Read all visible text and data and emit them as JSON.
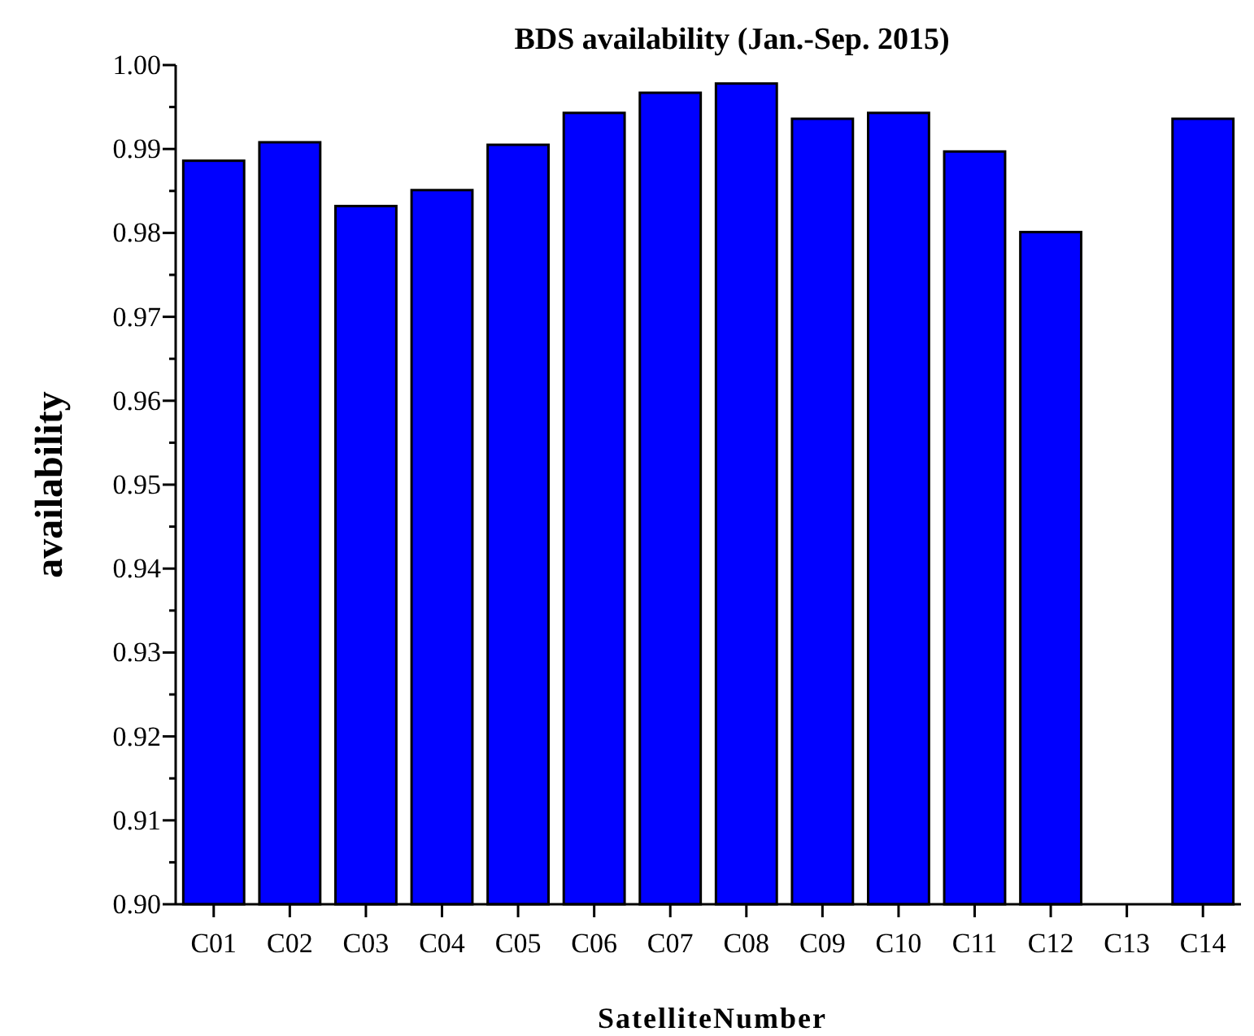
{
  "chart_data": {
    "type": "bar",
    "title": "BDS availability (Jan.-Sep. 2015)",
    "xlabel": "SatelliteNumber",
    "ylabel": "availability",
    "categories": [
      "C01",
      "C02",
      "C03",
      "C04",
      "C05",
      "C06",
      "C07",
      "C08",
      "C09",
      "C10",
      "C11",
      "C12",
      "C13",
      "C14"
    ],
    "values": [
      0.9886,
      0.9908,
      0.9832,
      0.9851,
      0.9905,
      0.9943,
      0.9967,
      0.9978,
      0.9936,
      0.9943,
      0.9897,
      0.9801,
      null,
      0.9936
    ],
    "color": "#0000ff",
    "ylim": [
      0.9,
      1.0
    ],
    "yticks": [
      {
        "value": 0.9,
        "label": "0.90"
      },
      {
        "value": 0.905,
        "label": null
      },
      {
        "value": 0.91,
        "label": "0.91"
      },
      {
        "value": 0.915,
        "label": null
      },
      {
        "value": 0.92,
        "label": "0.92"
      },
      {
        "value": 0.925,
        "label": null
      },
      {
        "value": 0.93,
        "label": "0.93"
      },
      {
        "value": 0.935,
        "label": null
      },
      {
        "value": 0.94,
        "label": "0.94"
      },
      {
        "value": 0.945,
        "label": null
      },
      {
        "value": 0.95,
        "label": "0.95"
      },
      {
        "value": 0.955,
        "label": null
      },
      {
        "value": 0.96,
        "label": "0.96"
      },
      {
        "value": 0.965,
        "label": null
      },
      {
        "value": 0.97,
        "label": "0.97"
      },
      {
        "value": 0.975,
        "label": null
      },
      {
        "value": 0.98,
        "label": "0.98"
      },
      {
        "value": 0.985,
        "label": null
      },
      {
        "value": 0.99,
        "label": "0.99"
      },
      {
        "value": 0.995,
        "label": null
      },
      {
        "value": 1.0,
        "label": "1.00"
      }
    ],
    "grid": false
  }
}
